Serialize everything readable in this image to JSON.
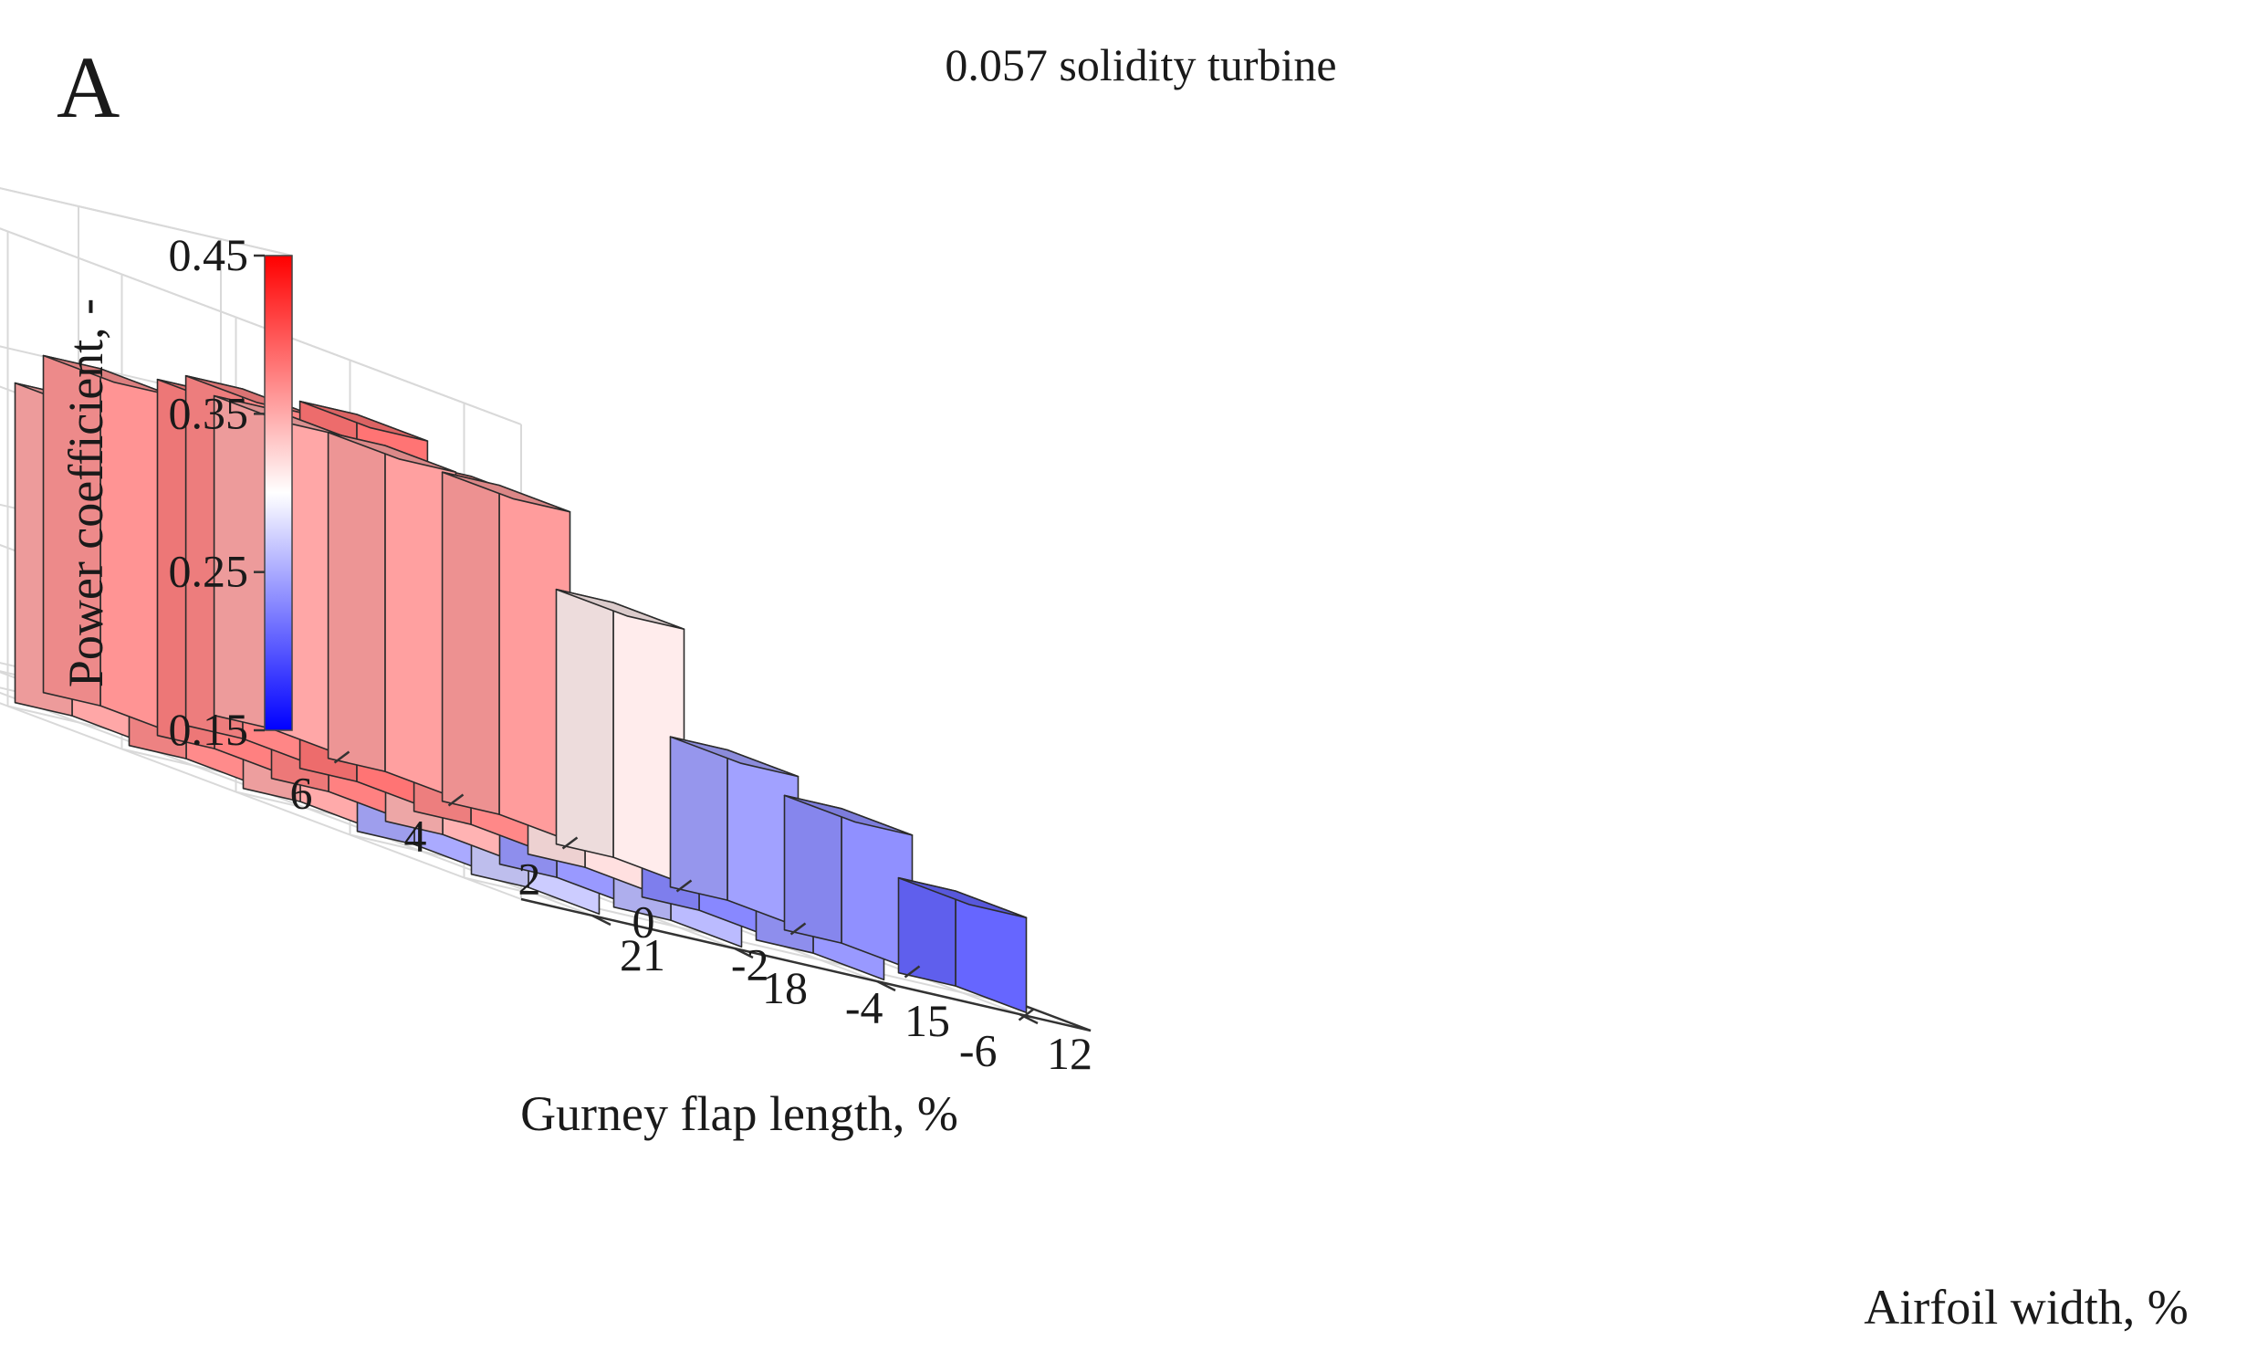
{
  "panel_letter": "A",
  "chart_data": {
    "type": "bar3d",
    "title": "0.057 solidity turbine",
    "xlabel": "Gurney flap length, %",
    "ylabel": "Airfoil width, %",
    "zlabel": "Power coefficient, -",
    "gurney_flap_ticks": [
      "6",
      "4",
      "2",
      "0",
      "-2",
      "-4",
      "-6"
    ],
    "airfoil_width_ticks": [
      "12",
      "15",
      "18",
      "21"
    ],
    "z_ticks": [
      "0.15",
      "0.25",
      "0.35",
      "0.45"
    ],
    "zlim": [
      0.15,
      0.45
    ],
    "grid": true,
    "colorbar": {
      "position": "left",
      "range": [
        0.15,
        0.45
      ],
      "colors": {
        "low": "#0000ff",
        "mid": "#ffffff",
        "high": "#ff0000"
      }
    },
    "series": [
      {
        "gurney_flap": 6,
        "airfoil_width": 21,
        "power_coefficient": 0.352
      },
      {
        "gurney_flap": 4,
        "airfoil_width": 21,
        "power_coefficient": 0.356
      },
      {
        "gurney_flap": 4,
        "airfoil_width": 18,
        "power_coefficient": 0.371
      },
      {
        "gurney_flap": 4,
        "airfoil_width": 15,
        "power_coefficient": 0.363
      },
      {
        "gurney_flap": 2,
        "airfoil_width": 21,
        "power_coefficient": 0.358
      },
      {
        "gurney_flap": 2,
        "airfoil_width": 18,
        "power_coefficient": 0.382
      },
      {
        "gurney_flap": 2,
        "airfoil_width": 15,
        "power_coefficient": 0.375
      },
      {
        "gurney_flap": 2,
        "airfoil_width": 12,
        "power_coefficient": 0.352
      },
      {
        "gurney_flap": 0,
        "airfoil_width": 21,
        "power_coefficient": 0.311
      },
      {
        "gurney_flap": 0,
        "airfoil_width": 18,
        "power_coefficient": 0.37
      },
      {
        "gurney_flap": 0,
        "airfoil_width": 15,
        "power_coefficient": 0.374
      },
      {
        "gurney_flap": 0,
        "airfoil_width": 12,
        "power_coefficient": 0.368
      },
      {
        "gurney_flap": -2,
        "airfoil_width": 21,
        "power_coefficient": 0.245
      },
      {
        "gurney_flap": -2,
        "airfoil_width": 18,
        "power_coefficient": 0.318
      },
      {
        "gurney_flap": -2,
        "airfoil_width": 15,
        "power_coefficient": 0.345
      },
      {
        "gurney_flap": -2,
        "airfoil_width": 12,
        "power_coefficient": 0.35
      },
      {
        "gurney_flap": -4,
        "airfoil_width": 21,
        "power_coefficient": 0.235
      },
      {
        "gurney_flap": -4,
        "airfoil_width": 18,
        "power_coefficient": 0.23
      },
      {
        "gurney_flap": -4,
        "airfoil_width": 15,
        "power_coefficient": 0.24
      },
      {
        "gurney_flap": -4,
        "airfoil_width": 12,
        "power_coefficient": 0.25
      },
      {
        "gurney_flap": -6,
        "airfoil_width": 21,
        "power_coefficient": 0.21
      },
      {
        "gurney_flap": -6,
        "airfoil_width": 18,
        "power_coefficient": 0.24
      },
      {
        "gurney_flap": -6,
        "airfoil_width": 15,
        "power_coefficient": 0.26
      },
      {
        "gurney_flap": -6,
        "airfoil_width": 12,
        "power_coefficient": 0.27
      }
    ]
  }
}
